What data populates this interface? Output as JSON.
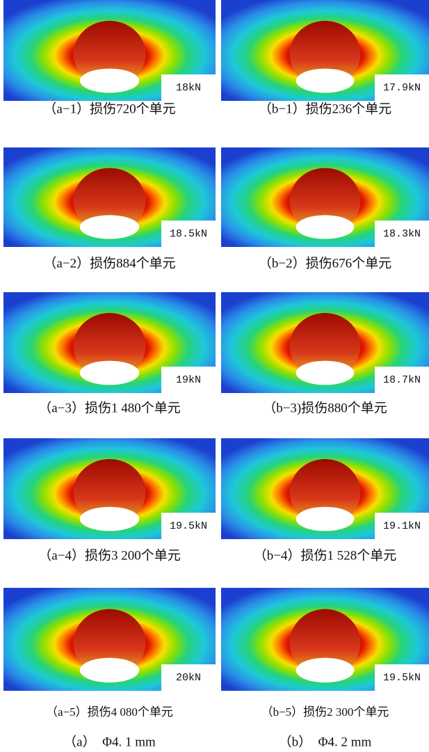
{
  "panels": [
    {
      "load": "18kN",
      "caption": "（a−1）损伤720个单元"
    },
    {
      "load": "17.9kN",
      "caption": "（b−1）损伤236个单元"
    },
    {
      "load": "18.5kN",
      "caption": "（a−2）损伤884个单元"
    },
    {
      "load": "18.3kN",
      "caption": "（b−2）损伤676个单元"
    },
    {
      "load": "19kN",
      "caption": "（a−3）损伤1 480个单元"
    },
    {
      "load": "18.7kN",
      "caption": "（b−3)损伤880个单元"
    },
    {
      "load": "19.5kN",
      "caption": "（a−4）损伤3 200个单元"
    },
    {
      "load": "19.1kN",
      "caption": "（b−4）损伤1 528个单元"
    },
    {
      "load": "20kN",
      "caption": "（a−5）损伤4 080个单元"
    },
    {
      "load": "19.5kN",
      "caption": "（b−5）损伤2 300个单元"
    }
  ],
  "columns": [
    "（a）　Φ4. 1 mm",
    "（b）　Φ4. 2 mm"
  ]
}
